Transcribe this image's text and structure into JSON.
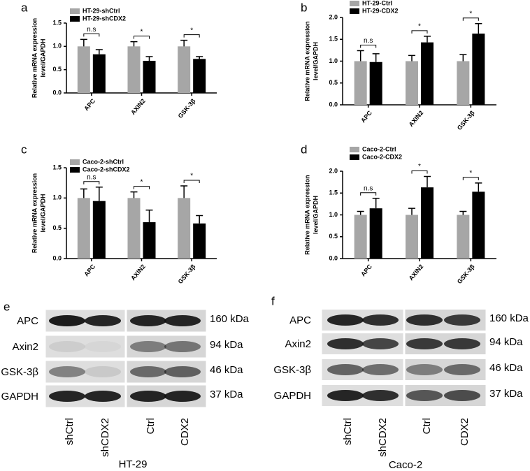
{
  "chart_data": [
    {
      "type": "bar",
      "label": "a",
      "ylabel": [
        "Relative mRNA expression",
        "level/GAPDH"
      ],
      "categories": [
        "APC",
        "AXIN2",
        "GSK-3β"
      ],
      "series": [
        {
          "name": "HT-29-shCtrl",
          "color": "#a6a6a6",
          "values": [
            1.0,
            1.0,
            1.0
          ],
          "errors": [
            0.15,
            0.1,
            0.13
          ]
        },
        {
          "name": "HT-29-shCDX2",
          "color": "#000000",
          "values": [
            0.83,
            0.69,
            0.73
          ],
          "errors": [
            0.1,
            0.09,
            0.05
          ]
        }
      ],
      "ylim": [
        0,
        1.5
      ],
      "yticks": [
        {
          "value": 0,
          "label": "0.0"
        },
        0.5,
        {
          "value": 1,
          "label": "1.0"
        },
        1.5
      ],
      "annotations": [
        "n.s",
        "*",
        "*"
      ],
      "legend": "top-left"
    },
    {
      "type": "bar",
      "label": "b",
      "ylabel": [
        "Relative mRNA expression",
        "level/GAPDH"
      ],
      "categories": [
        "APC",
        "AXIN2",
        "GSK-3β"
      ],
      "series": [
        {
          "name": "HT-29-Ctrl",
          "color": "#a6a6a6",
          "values": [
            1.0,
            1.0,
            1.0
          ],
          "errors": [
            0.24,
            0.13,
            0.15
          ]
        },
        {
          "name": "HT-29-CDX2",
          "color": "#000000",
          "values": [
            0.98,
            1.43,
            1.63
          ],
          "errors": [
            0.19,
            0.14,
            0.23
          ]
        }
      ],
      "ylim": [
        0,
        2
      ],
      "yticks": [
        {
          "value": 0,
          "label": "0.0"
        },
        0.5,
        {
          "value": 1,
          "label": "1.0"
        },
        1.5,
        {
          "value": 2,
          "label": "2.0"
        }
      ],
      "annotations": [
        "n.s",
        "*",
        "*"
      ],
      "legend": "top-left"
    },
    {
      "type": "bar",
      "label": "c",
      "ylabel": [
        "Relative mRNA expression",
        "level/GAPDH"
      ],
      "categories": [
        "APC",
        "AXIN2",
        "GSK-3β"
      ],
      "series": [
        {
          "name": "Caco-2-shCtrl",
          "color": "#a6a6a6",
          "values": [
            1.0,
            1.0,
            1.0
          ],
          "errors": [
            0.15,
            0.1,
            0.2
          ]
        },
        {
          "name": "Caco-2-shCDX2",
          "color": "#000000",
          "values": [
            0.95,
            0.6,
            0.58
          ],
          "errors": [
            0.23,
            0.2,
            0.13
          ]
        }
      ],
      "ylim": [
        0,
        1.5
      ],
      "yticks": [
        {
          "value": 0,
          "label": "0.0"
        },
        0.5,
        {
          "value": 1,
          "label": "1.0"
        },
        1.5
      ],
      "annotations": [
        "n.s",
        "*",
        "*"
      ],
      "legend": "top-left"
    },
    {
      "type": "bar",
      "label": "d",
      "ylabel": [
        "Relative mRNA expression",
        "level/GAPDH"
      ],
      "categories": [
        "APC",
        "AXIN2",
        "GSK-3β"
      ],
      "series": [
        {
          "name": "Caco-2-Ctrl",
          "color": "#a6a6a6",
          "values": [
            1.0,
            1.0,
            1.0
          ],
          "errors": [
            0.08,
            0.15,
            0.08
          ]
        },
        {
          "name": "Caco-2-CDX2",
          "color": "#000000",
          "values": [
            1.15,
            1.63,
            1.53
          ],
          "errors": [
            0.23,
            0.25,
            0.2
          ]
        }
      ],
      "ylim": [
        0,
        2
      ],
      "yticks": [
        {
          "value": 0,
          "label": "0.0"
        },
        0.5,
        {
          "value": 1,
          "label": "1.0"
        },
        1.5,
        {
          "value": 2,
          "label": "2.0"
        }
      ],
      "annotations": [
        "n.s",
        "*",
        "*"
      ],
      "legend": "top-left"
    }
  ],
  "blots": [
    {
      "label": "e",
      "rows": [
        "APC",
        "Axin2",
        "GSK-3β",
        "GAPDH"
      ],
      "sizes": [
        "160 kDa",
        "94 kDa",
        "46 kDa",
        "37 kDa"
      ],
      "lanes": [
        "shCtrl",
        "shCDX2",
        "Ctrl",
        "CDX2"
      ],
      "cell_line": "HT-29"
    },
    {
      "label": "f",
      "rows": [
        "APC",
        "Axin2",
        "GSK-3β",
        "GAPDH"
      ],
      "sizes": [
        "160 kDa",
        "94 kDa",
        "46 kDa",
        "37 kDa"
      ],
      "lanes": [
        "shCtrl",
        "shCDX2",
        "Ctrl",
        "CDX2"
      ],
      "cell_line": "Caco-2"
    }
  ]
}
